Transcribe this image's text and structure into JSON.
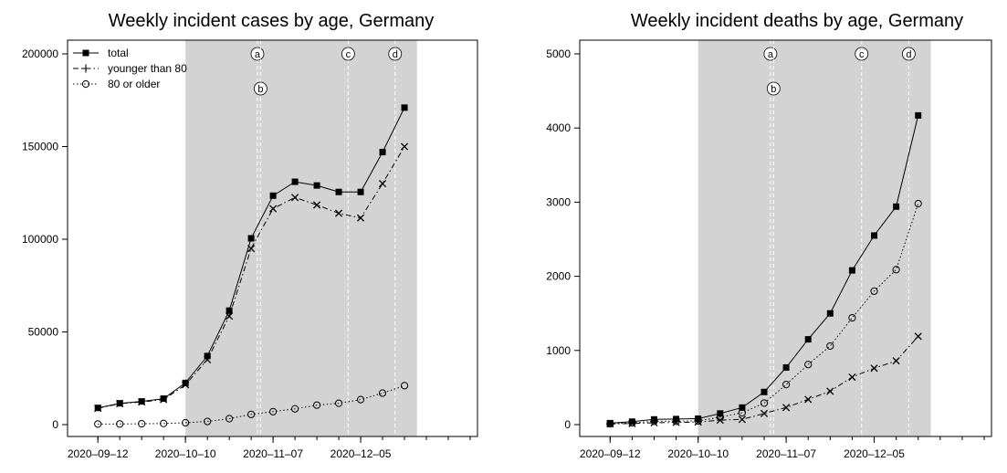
{
  "chart_data": [
    {
      "type": "line",
      "title": "Weekly incident cases by age, Germany",
      "xlabel": "",
      "ylabel": "",
      "x": [
        "2020-09-12",
        "2020-09-19",
        "2020-09-26",
        "2020-10-03",
        "2020-10-10",
        "2020-10-17",
        "2020-10-24",
        "2020-10-31",
        "2020-11-07",
        "2020-11-14",
        "2020-11-21",
        "2020-11-28",
        "2020-12-05",
        "2020-12-12",
        "2020-12-19"
      ],
      "xticks": [
        "2020-09-12",
        "2020-10-10",
        "2020-11-07",
        "2020-12-05"
      ],
      "ylim": [
        0,
        200000
      ],
      "yticks": [
        0,
        50000,
        100000,
        150000,
        200000
      ],
      "shaded_range": [
        "2020-10-10",
        "2020-12-23"
      ],
      "series": [
        {
          "name": "total",
          "style": "solid",
          "marker": "filled-square",
          "values": [
            9000,
            11500,
            12500,
            14000,
            22500,
            37000,
            61500,
            100500,
            123500,
            131000,
            129000,
            125500,
            125500,
            147000,
            171000
          ]
        },
        {
          "name": "younger than 80",
          "style": "dashdot",
          "marker": "x",
          "values": [
            8800,
            11300,
            12200,
            13500,
            21500,
            35000,
            58500,
            95000,
            116500,
            122500,
            118500,
            114000,
            111500,
            130000,
            150000
          ]
        },
        {
          "name": "80 or older",
          "style": "dotted",
          "marker": "open-circle",
          "values": [
            300,
            350,
            450,
            600,
            1000,
            1700,
            3200,
            5500,
            7000,
            8500,
            10500,
            11500,
            13500,
            17000,
            21000
          ]
        }
      ],
      "event_markers": [
        {
          "label": "a",
          "date": "2020-11-02",
          "row": 1
        },
        {
          "label": "b",
          "date": "2020-11-03",
          "row": 2
        },
        {
          "label": "c",
          "date": "2020-12-01",
          "row": 1
        },
        {
          "label": "d",
          "date": "2020-12-16",
          "row": 1
        }
      ],
      "legend": "top-left"
    },
    {
      "type": "line",
      "title": "Weekly incident deaths by age, Germany",
      "xlabel": "",
      "ylabel": "",
      "x": [
        "2020-09-12",
        "2020-09-19",
        "2020-09-26",
        "2020-10-03",
        "2020-10-10",
        "2020-10-17",
        "2020-10-24",
        "2020-10-31",
        "2020-11-07",
        "2020-11-14",
        "2020-11-21",
        "2020-11-28",
        "2020-12-05",
        "2020-12-12",
        "2020-12-19"
      ],
      "xticks": [
        "2020-09-12",
        "2020-10-10",
        "2020-11-07",
        "2020-12-05"
      ],
      "ylim": [
        0,
        5000
      ],
      "yticks": [
        0,
        1000,
        2000,
        3000,
        4000,
        5000
      ],
      "shaded_range": [
        "2020-10-10",
        "2020-12-23"
      ],
      "series": [
        {
          "name": "total",
          "style": "solid",
          "marker": "filled-square",
          "values": [
            20,
            40,
            70,
            75,
            80,
            150,
            230,
            440,
            770,
            1150,
            1500,
            2080,
            2550,
            2940,
            4170
          ]
        },
        {
          "name": "younger than 80",
          "style": "dashdot",
          "marker": "x",
          "values": [
            10,
            15,
            25,
            30,
            35,
            60,
            70,
            150,
            230,
            340,
            450,
            640,
            760,
            860,
            1190
          ]
        },
        {
          "name": "80 or older",
          "style": "dotted",
          "marker": "open-circle",
          "values": [
            10,
            25,
            45,
            45,
            50,
            100,
            160,
            290,
            540,
            810,
            1060,
            1440,
            1800,
            2090,
            2980
          ]
        }
      ],
      "event_markers": [
        {
          "label": "a",
          "date": "2020-11-02",
          "row": 1
        },
        {
          "label": "b",
          "date": "2020-11-03",
          "row": 2
        },
        {
          "label": "c",
          "date": "2020-12-01",
          "row": 1
        },
        {
          "label": "d",
          "date": "2020-12-16",
          "row": 1
        }
      ],
      "legend": "none"
    }
  ]
}
